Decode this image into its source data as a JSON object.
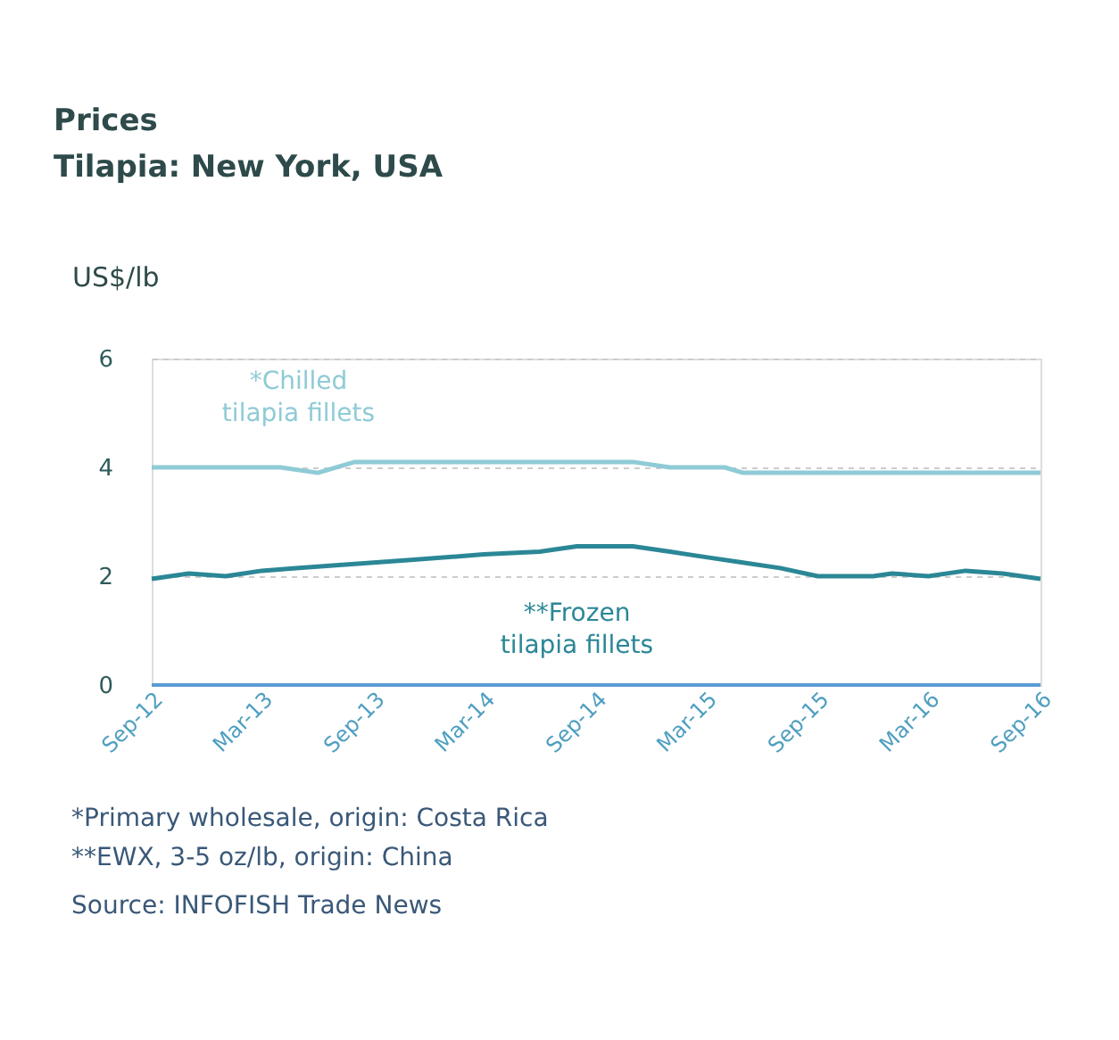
{
  "chart_data": {
    "type": "line",
    "title": "Prices",
    "subtitle": "Tilapia: New York, USA",
    "ylabel": "US$/lb",
    "xlim": [
      "2012-09",
      "2016-09"
    ],
    "xticks": [
      {
        "value": "2012-09",
        "label": "Sep-12"
      },
      {
        "value": "2013-03",
        "label": "Mar-13"
      },
      {
        "value": "2013-09",
        "label": "Sep-13"
      },
      {
        "value": "2014-03",
        "label": "Mar-14"
      },
      {
        "value": "2014-09",
        "label": "Sep-14"
      },
      {
        "value": "2015-03",
        "label": "Mar-15"
      },
      {
        "value": "2015-09",
        "label": "Sep-15"
      },
      {
        "value": "2016-03",
        "label": "Mar-16"
      },
      {
        "value": "2016-09",
        "label": "Sep-16"
      }
    ],
    "ylim": [
      0,
      6
    ],
    "yticks": [
      0,
      2,
      4,
      6
    ],
    "grid": "y",
    "legend": false,
    "marker": "none",
    "line_style": "solid",
    "series": [
      {
        "name": "*Chilled tilapia fillets",
        "color": "#8fcbd6",
        "x": [
          "2012-09",
          "2013-04",
          "2013-06",
          "2013-08",
          "2014-11",
          "2015-01",
          "2015-04",
          "2015-05",
          "2016-09"
        ],
        "values": [
          4.0,
          4.0,
          3.9,
          4.1,
          4.1,
          4.0,
          4.0,
          3.9,
          3.9
        ]
      },
      {
        "name": "**Frozen tilapia fillets",
        "color": "#2b8796",
        "x": [
          "2012-09",
          "2012-11",
          "2013-01",
          "2013-03",
          "2013-05",
          "2013-07",
          "2013-11",
          "2014-03",
          "2014-06",
          "2014-07",
          "2014-08",
          "2014-11",
          "2015-01",
          "2015-03",
          "2015-05",
          "2015-07",
          "2015-09",
          "2015-12",
          "2016-01",
          "2016-03",
          "2016-05",
          "2016-07",
          "2016-09"
        ],
        "values": [
          1.95,
          2.05,
          2.0,
          2.1,
          2.15,
          2.2,
          2.3,
          2.4,
          2.45,
          2.5,
          2.55,
          2.55,
          2.45,
          2.35,
          2.25,
          2.15,
          2.0,
          2.0,
          2.05,
          2.0,
          2.1,
          2.05,
          1.95
        ]
      }
    ],
    "annotations": [
      "*Primary wholesale, origin: Costa Rica",
      "**EWX, 3-5 oz/lb, origin: China",
      "Source: INFOFISH Trade News"
    ]
  }
}
